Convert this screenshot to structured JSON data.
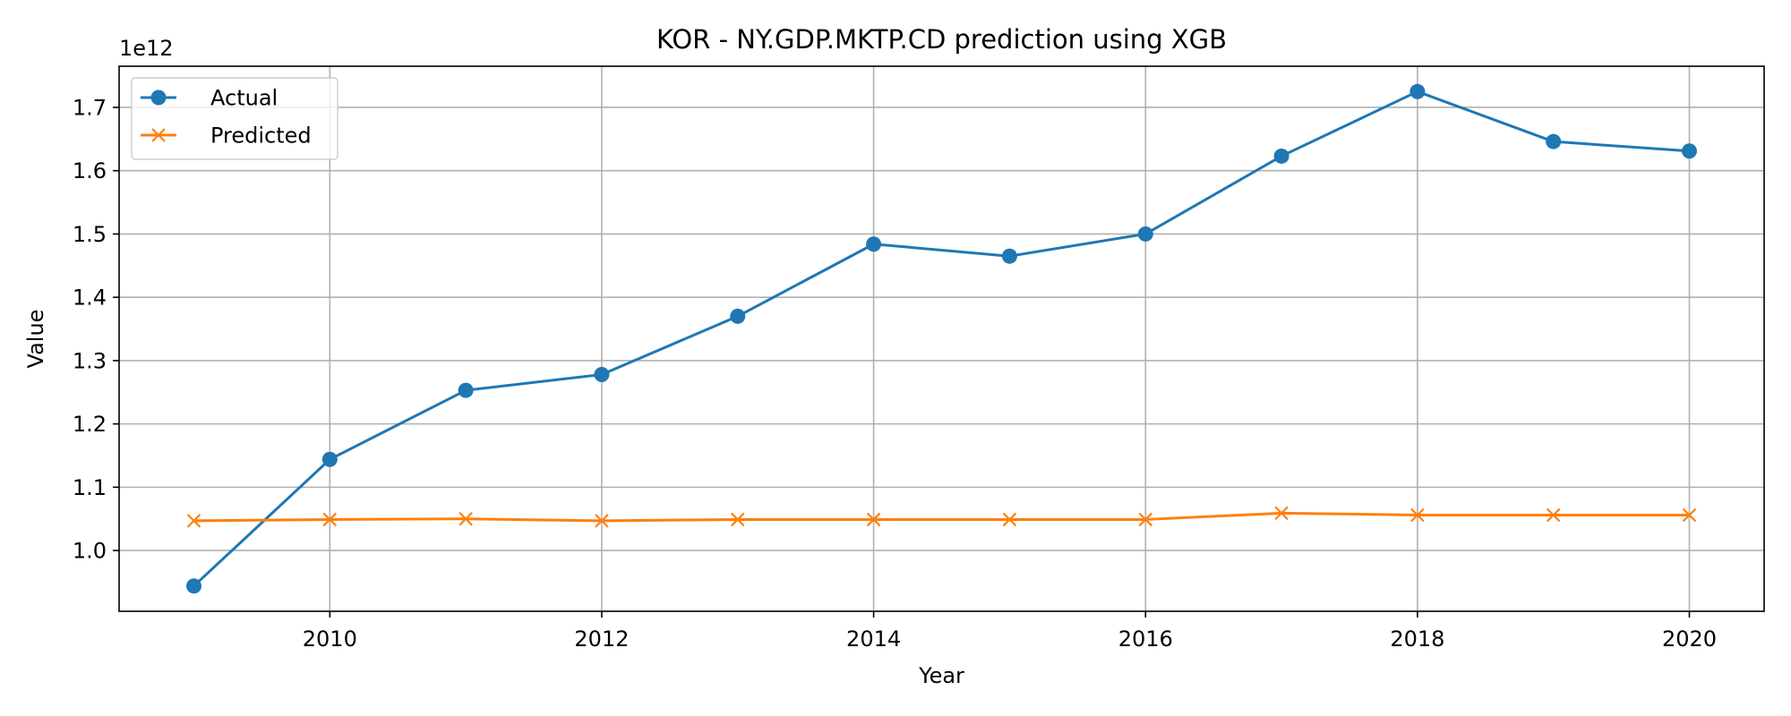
{
  "chart_data": {
    "type": "line",
    "title": "KOR - NY.GDP.MKTP.CD prediction using XGB",
    "xlabel": "Year",
    "ylabel": "Value",
    "y_offset_label": "1e12",
    "x": [
      2009,
      2010,
      2011,
      2012,
      2013,
      2014,
      2015,
      2016,
      2017,
      2018,
      2019,
      2020
    ],
    "xlim": [
      2008.45,
      2020.55
    ],
    "ylim": [
      0.904,
      1.765
    ],
    "y_unit_multiplier": 1000000000000.0,
    "x_ticks": [
      2010,
      2012,
      2014,
      2016,
      2018,
      2020
    ],
    "y_ticks": [
      1.0,
      1.1,
      1.2,
      1.3,
      1.4,
      1.5,
      1.6,
      1.7
    ],
    "y_tick_labels": [
      "1.0",
      "1.1",
      "1.2",
      "1.3",
      "1.4",
      "1.5",
      "1.6",
      "1.7"
    ],
    "grid": true,
    "legend_position": "top-left",
    "series": [
      {
        "name": "Actual",
        "color": "#1f77b4",
        "marker": "circle",
        "values": [
          0.944,
          1.144,
          1.253,
          1.278,
          1.37,
          1.484,
          1.465,
          1.5,
          1.623,
          1.725,
          1.646,
          1.631
        ]
      },
      {
        "name": "Predicted",
        "color": "#ff7f0e",
        "marker": "x",
        "values": [
          1.047,
          1.049,
          1.05,
          1.047,
          1.049,
          1.049,
          1.049,
          1.049,
          1.059,
          1.056,
          1.056,
          1.056
        ]
      }
    ]
  }
}
